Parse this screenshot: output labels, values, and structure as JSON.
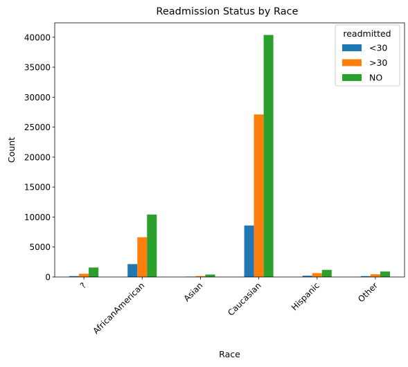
{
  "chart_data": {
    "type": "bar",
    "title": "Readmission Status by Race",
    "xlabel": "Race",
    "ylabel": "Count",
    "categories": [
      "?",
      "AfricanAmerican",
      "Asian",
      "Caucasian",
      "Hispanic",
      "Other"
    ],
    "series": [
      {
        "name": "<30",
        "color": "#1f77b4",
        "values": [
          150,
          2150,
          65,
          8590,
          210,
          145
        ]
      },
      {
        "name": ">30",
        "color": "#ff7f0e",
        "values": [
          540,
          6630,
          160,
          27120,
          640,
          450
        ]
      },
      {
        "name": "NO",
        "color": "#2ca02c",
        "values": [
          1580,
          10420,
          410,
          40380,
          1190,
          910
        ]
      }
    ],
    "ylim": [
      0,
      42400
    ],
    "yticks": [
      0,
      5000,
      10000,
      15000,
      20000,
      25000,
      30000,
      35000,
      40000
    ],
    "legend": {
      "title": "readmitted",
      "position": "upper right"
    },
    "grid": false,
    "xtick_rotation": 45
  }
}
